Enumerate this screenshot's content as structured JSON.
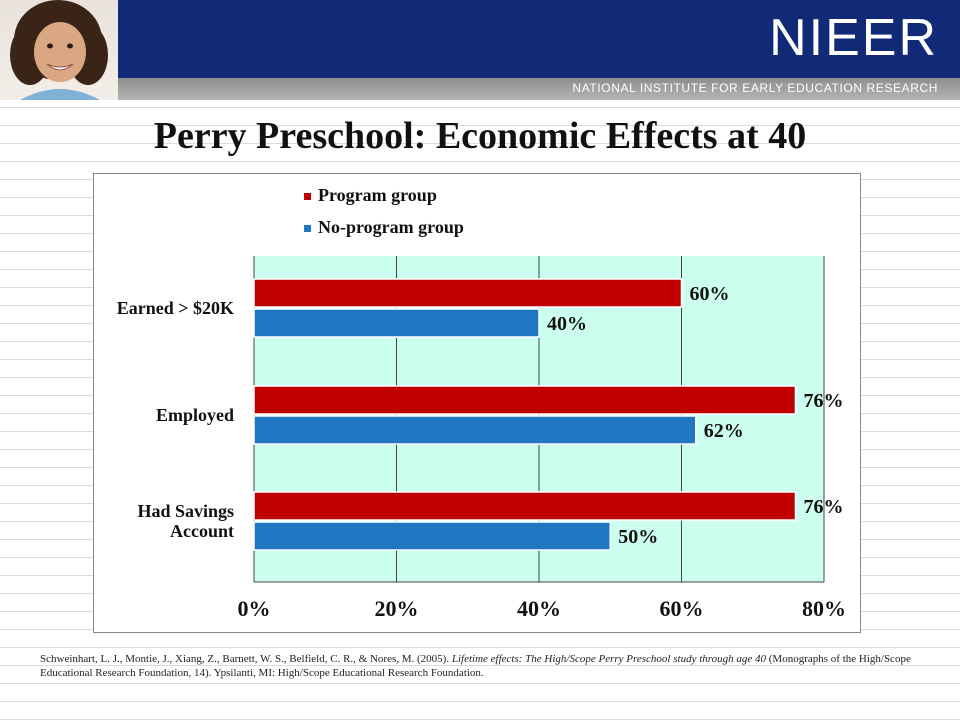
{
  "header": {
    "logo_text": "NIEER",
    "tagline": "NATIONAL INSTITUTE FOR EARLY EDUCATION RESEARCH"
  },
  "title": "Perry Preschool: Economic Effects at 40",
  "colors": {
    "program": "#c00000",
    "no_program": "#1f77c4",
    "plot_bg": "#ccfff0",
    "banner": "#102a77"
  },
  "chart_data": {
    "type": "bar",
    "orientation": "horizontal",
    "categories": [
      "Earned > $20K",
      "Employed",
      "Had Savings Account"
    ],
    "category_lines": [
      [
        "Earned > $20K"
      ],
      [
        "Employed"
      ],
      [
        "Had Savings",
        "Account"
      ]
    ],
    "series": [
      {
        "name": "Program group",
        "values": [
          60,
          76,
          76
        ],
        "labels": [
          "60%",
          "76%",
          "76%"
        ]
      },
      {
        "name": "No-program group",
        "values": [
          40,
          62,
          50
        ],
        "labels": [
          "40%",
          "62%",
          "50%"
        ]
      }
    ],
    "xlim": [
      0,
      80
    ],
    "xticks": [
      0,
      20,
      40,
      60,
      80
    ],
    "xtick_labels": [
      "0%",
      "20%",
      "40%",
      "60%",
      "80%"
    ],
    "grid": true,
    "legend_position": "top-left"
  },
  "citation": {
    "part1": "Schweinhart, L. J., Montie, J., Xiang, Z., Barnett, W. S., Belfield, C. R., & Nores, M. (2005). ",
    "italic": "Lifetime effects:  The High/Scope Perry Preschool study through age 40",
    "part2": " (Monographs of the High/Scope Educational Research Foundation, 14).  Ypsilanti, MI: High/Scope Educational Research Foundation."
  }
}
